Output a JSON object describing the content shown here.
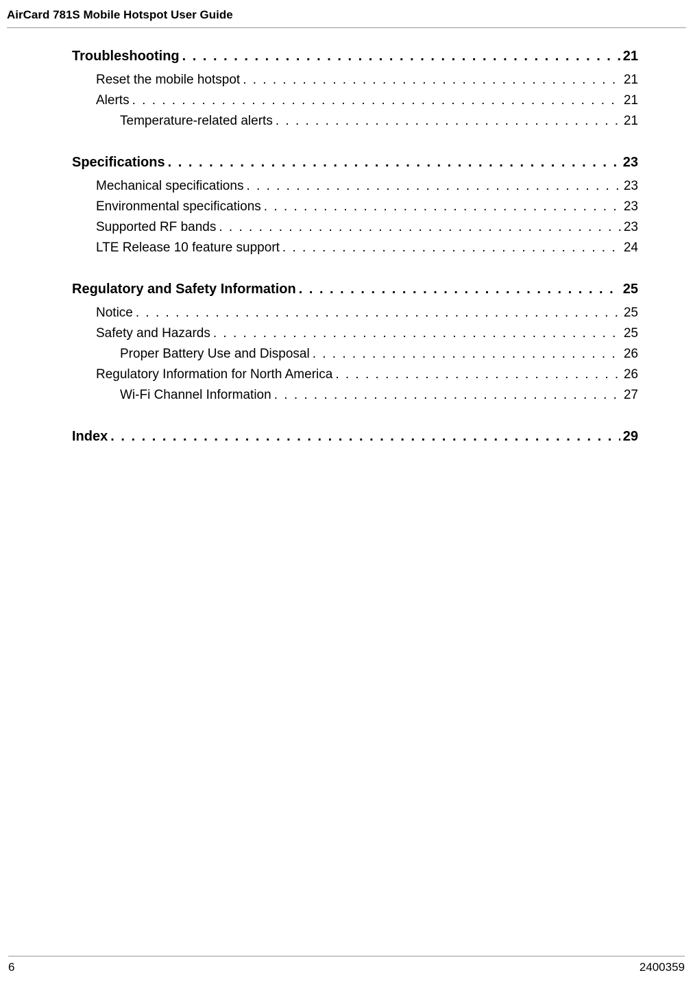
{
  "header": {
    "title": "AirCard 781S Mobile Hotspot User Guide"
  },
  "toc": [
    {
      "title": "Troubleshooting",
      "page": "21",
      "level": 1,
      "children": [
        {
          "title": "Reset the mobile hotspot",
          "page": "21",
          "level": 2
        },
        {
          "title": "Alerts",
          "page": "21",
          "level": 2,
          "children": [
            {
              "title": "Temperature-related alerts",
              "page": "21",
              "level": 3
            }
          ]
        }
      ]
    },
    {
      "title": "Specifications",
      "page": "23",
      "level": 1,
      "children": [
        {
          "title": "Mechanical specifications",
          "page": "23",
          "level": 2
        },
        {
          "title": "Environmental specifications",
          "page": "23",
          "level": 2
        },
        {
          "title": "Supported RF bands",
          "page": "23",
          "level": 2
        },
        {
          "title": "LTE Release 10 feature support",
          "page": "24",
          "level": 2
        }
      ]
    },
    {
      "title": "Regulatory and Safety Information",
      "page": "25",
      "level": 1,
      "children": [
        {
          "title": "Notice",
          "page": "25",
          "level": 2
        },
        {
          "title": "Safety and Hazards",
          "page": "25",
          "level": 2,
          "children": [
            {
              "title": "Proper Battery Use and Disposal",
              "page": "26",
              "level": 3
            }
          ]
        },
        {
          "title": "Regulatory Information for North America",
          "page": "26",
          "level": 2,
          "children": [
            {
              "title": "Wi-Fi Channel Information",
              "page": "27",
              "level": 3
            }
          ]
        }
      ]
    },
    {
      "title": "Index",
      "page": "29",
      "level": 1
    }
  ],
  "footer": {
    "page_number": "6",
    "doc_number": "2400359"
  }
}
